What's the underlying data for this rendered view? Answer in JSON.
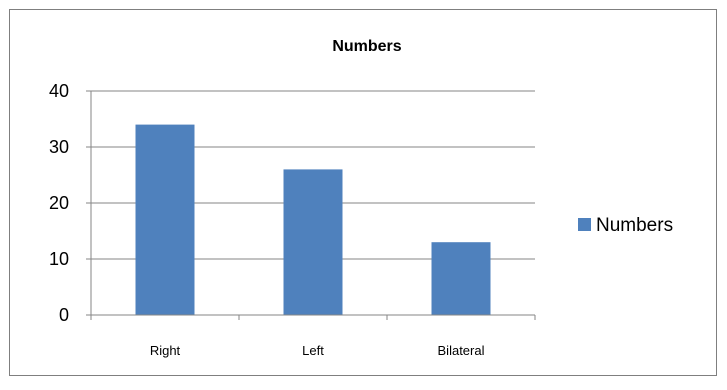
{
  "chart_data": {
    "type": "bar",
    "title": "Numbers",
    "categories": [
      "Right",
      "Left",
      "Bilateral"
    ],
    "series": [
      {
        "name": "Numbers",
        "values": [
          34,
          26,
          13
        ],
        "color": "#4F81BD"
      }
    ],
    "ylim": [
      0,
      40
    ],
    "yticks": [
      "0",
      "10",
      "20",
      "30",
      "40"
    ],
    "grid": true,
    "legend": {
      "position": "right",
      "entries": [
        "Numbers"
      ]
    }
  }
}
